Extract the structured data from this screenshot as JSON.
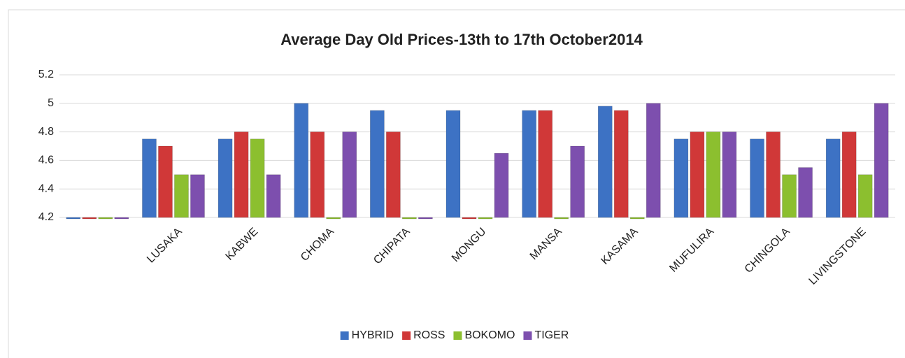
{
  "chart_data": {
    "type": "bar",
    "title": "Average Day Old Prices-13th to 17th October2014",
    "categories": [
      null,
      "LUSAKA",
      "KABWE",
      "CHOMA",
      "CHIPATA",
      "MONGU",
      "MANSA",
      "KASAMA",
      "MUFULIRA",
      "CHINGOLA",
      "LIVINGSTONE"
    ],
    "series": [
      {
        "name": "HYBRID",
        "color": "#3d72c4",
        "values": [
          4.2,
          4.75,
          4.75,
          5,
          4.95,
          4.95,
          4.95,
          4.98,
          4.75,
          4.75,
          4.75
        ]
      },
      {
        "name": "ROSS",
        "color": "#d03838",
        "values": [
          4.2,
          4.7,
          4.8,
          4.8,
          4.8,
          4.2,
          4.95,
          4.95,
          4.8,
          4.8,
          4.8
        ]
      },
      {
        "name": "BOKOMO",
        "color": "#8cbf2f",
        "values": [
          4.2,
          4.5,
          4.75,
          4.2,
          4.2,
          4.2,
          4.2,
          4.2,
          4.8,
          4.5,
          4.5
        ]
      },
      {
        "name": "TIGER",
        "color": "#7d4fae",
        "values": [
          4.2,
          4.5,
          4.5,
          4.8,
          4.2,
          4.65,
          4.7,
          5,
          4.8,
          4.55,
          5
        ]
      }
    ],
    "ylim": [
      4.2,
      5.2
    ],
    "yticks": [
      4.2,
      4.4,
      4.6,
      4.8,
      5,
      5.2
    ],
    "grid": true,
    "legend": "bottom"
  }
}
